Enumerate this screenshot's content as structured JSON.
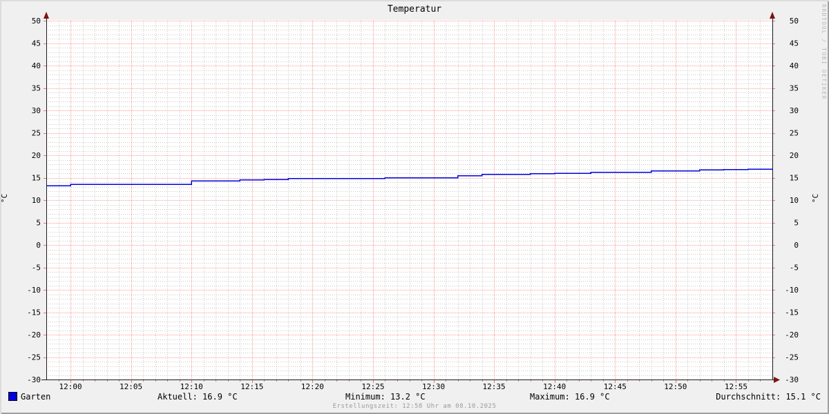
{
  "title": "Temperatur",
  "watermark": "RRDTOOL / TOBI OETIKER",
  "footer": {
    "created": "Erstellungszeit: 12:58 Uhr am 08.10.2025"
  },
  "y_axis": {
    "unit_label": "°C",
    "ticks": [
      50,
      45,
      40,
      35,
      30,
      25,
      20,
      15,
      10,
      5,
      0,
      -5,
      -10,
      -15,
      -20,
      -25,
      -30
    ]
  },
  "x_axis": {
    "ticks": [
      "12:00",
      "12:05",
      "12:10",
      "12:15",
      "12:20",
      "12:25",
      "12:30",
      "12:35",
      "12:40",
      "12:45",
      "12:50",
      "12:55"
    ]
  },
  "legend": {
    "series_label": "Garten",
    "swatch_color": "#0000dd",
    "aktuell": "Aktuell: 16.9 °C",
    "minimum": "Minimum: 13.2 °C",
    "maximum": "Maximum: 16.9 °C",
    "durchschnitt": "Durchschnitt: 15.1 °C"
  },
  "colors": {
    "background": "#f0f0f0",
    "plot_background": "#ffffff",
    "line": "#0000dd",
    "major_grid": "rgba(255,0,0,0.40)",
    "minor_grid": "rgba(0,0,0,0.22)",
    "axis": "#1a1a1a",
    "arrow": "#7a1414",
    "tick": "rgba(200,30,30,0.55)"
  },
  "chart_data": {
    "type": "line",
    "title": "Temperatur",
    "ylabel": "°C",
    "ylim": [
      -30,
      50
    ],
    "y_tick_interval": 5,
    "y_minor_interval": 1,
    "x_range": [
      "11:58",
      "12:58"
    ],
    "x_tick_interval_minutes": 5,
    "x_minor_interval_minutes": 1,
    "grid": true,
    "legend_position": "bottom",
    "series": [
      {
        "name": "Garten",
        "color": "#0000dd",
        "start": "11:58",
        "step_minutes": 1,
        "values": [
          13.2,
          13.2,
          13.5,
          13.5,
          13.5,
          13.5,
          13.5,
          13.5,
          13.5,
          13.5,
          13.5,
          13.5,
          14.3,
          14.3,
          14.3,
          14.3,
          14.5,
          14.5,
          14.6,
          14.6,
          14.8,
          14.8,
          14.8,
          14.8,
          14.8,
          14.8,
          14.8,
          14.8,
          15.0,
          15.0,
          15.0,
          15.0,
          15.0,
          15.0,
          15.4,
          15.4,
          15.7,
          15.7,
          15.7,
          15.7,
          15.9,
          15.9,
          16.0,
          16.0,
          16.0,
          16.2,
          16.2,
          16.2,
          16.2,
          16.2,
          16.5,
          16.5,
          16.5,
          16.5,
          16.7,
          16.7,
          16.8,
          16.8,
          16.9,
          16.9,
          16.9
        ]
      }
    ],
    "stats": {
      "aktuell": 16.9,
      "minimum": 13.2,
      "maximum": 16.9,
      "durchschnitt": 15.1
    }
  }
}
